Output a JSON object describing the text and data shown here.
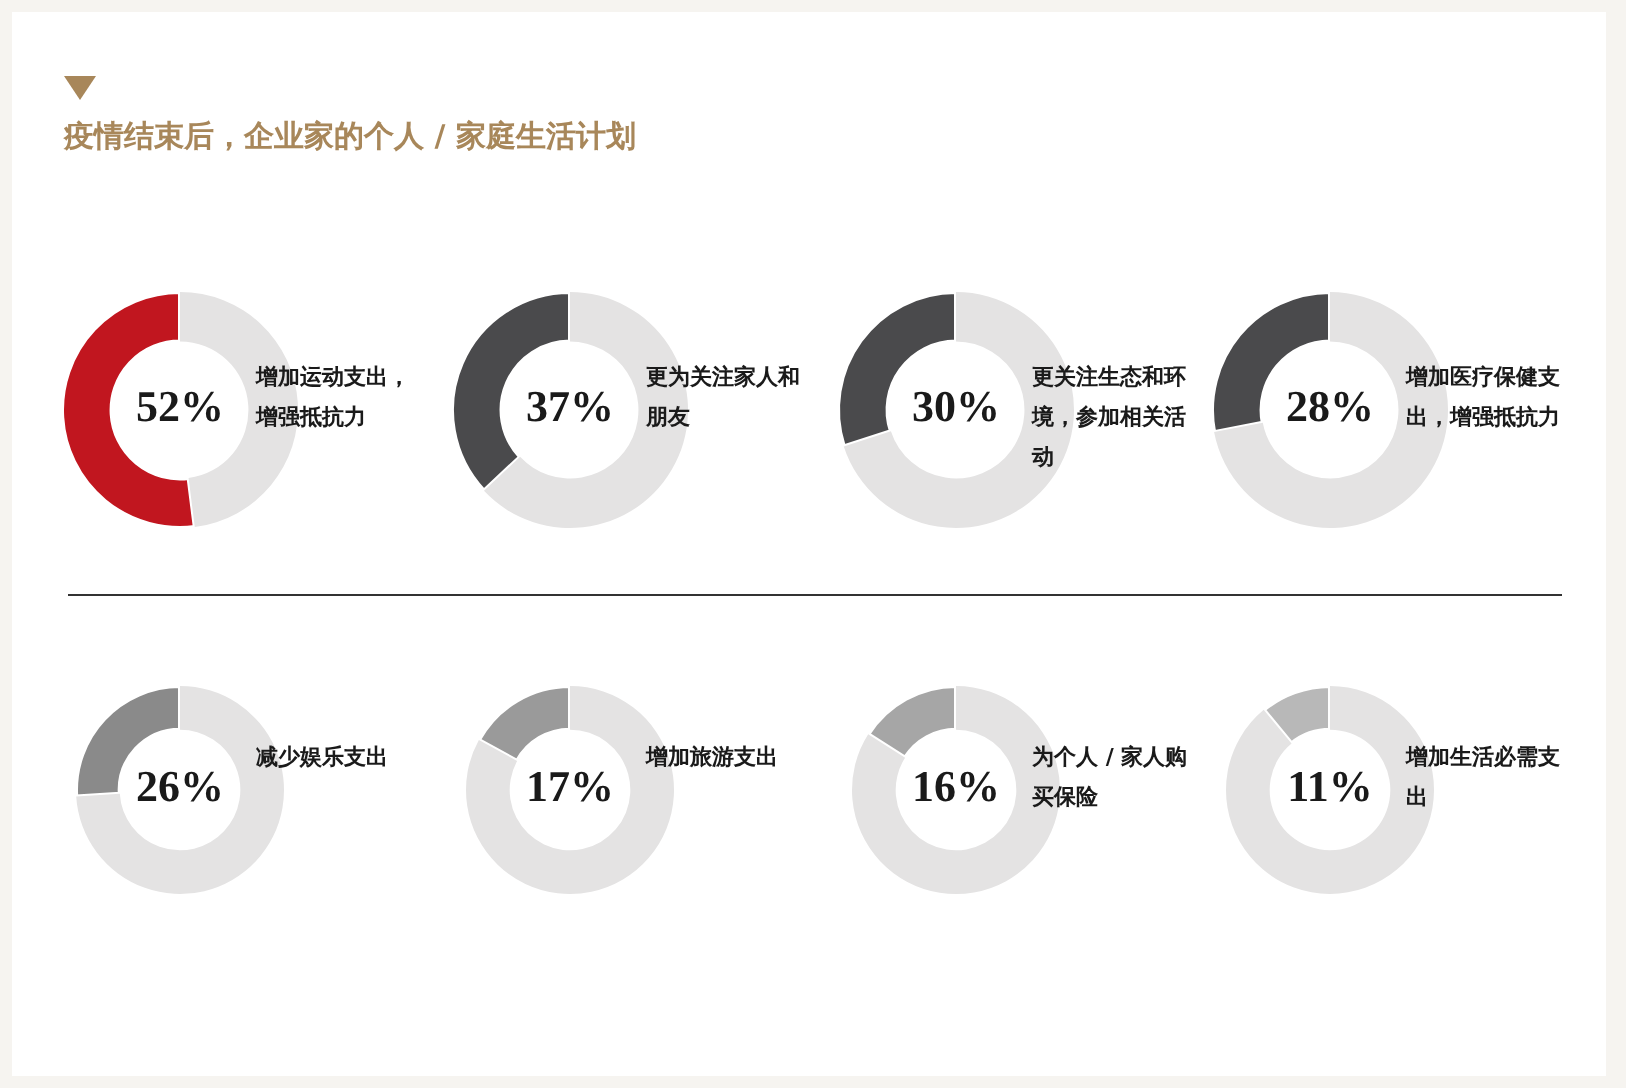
{
  "chart_data": [
    {
      "type": "other",
      "title": "疫情结束后，企业家的个人 / 家庭生活计划"
    },
    {
      "type": "donut",
      "title": "增加运动支出，增强抵抗力",
      "categories": [
        null,
        null
      ],
      "values": [
        52,
        48
      ],
      "colors": [
        "#c1161f",
        "#e4e3e3"
      ],
      "value_labels": [
        "52%",
        null
      ]
    },
    {
      "type": "donut",
      "title": "更为关注家人和朋友",
      "categories": [
        null,
        null
      ],
      "values": [
        37,
        63
      ],
      "colors": [
        "#4a4a4c",
        "#e4e3e3"
      ],
      "value_labels": [
        "37%",
        null
      ]
    },
    {
      "type": "donut",
      "title": "更关注生态和环境，参加相关活动",
      "categories": [
        null,
        null
      ],
      "values": [
        30,
        70
      ],
      "colors": [
        "#4a4a4c",
        "#e4e3e3"
      ],
      "value_labels": [
        "30%",
        null
      ]
    },
    {
      "type": "donut",
      "title": "增加医疗保健支出，增强抵抗力",
      "categories": [
        null,
        null
      ],
      "values": [
        28,
        72
      ],
      "colors": [
        "#4a4a4c",
        "#e4e3e3"
      ],
      "value_labels": [
        "28%",
        null
      ]
    },
    {
      "type": "donut",
      "title": "减少娱乐支出",
      "categories": [
        null,
        null
      ],
      "values": [
        26,
        74
      ],
      "colors": [
        "#8a8a8a",
        "#e4e3e3"
      ],
      "value_labels": [
        "26%",
        null
      ]
    },
    {
      "type": "donut",
      "title": "增加旅游支出",
      "categories": [
        null,
        null
      ],
      "values": [
        17,
        83
      ],
      "colors": [
        "#9a9a9a",
        "#e4e3e3"
      ],
      "value_labels": [
        "17%",
        null
      ]
    },
    {
      "type": "donut",
      "title": "为个人 / 家人购买保险",
      "categories": [
        null,
        null
      ],
      "values": [
        16,
        84
      ],
      "colors": [
        "#a6a6a6",
        "#e4e3e3"
      ],
      "value_labels": [
        "16%",
        null
      ]
    },
    {
      "type": "donut",
      "title": "增加生活必需支出",
      "categories": [
        null,
        null
      ],
      "values": [
        11,
        89
      ],
      "colors": [
        "#b8b8b8",
        "#e4e3e3"
      ],
      "value_labels": [
        "11%",
        null
      ]
    }
  ]
}
